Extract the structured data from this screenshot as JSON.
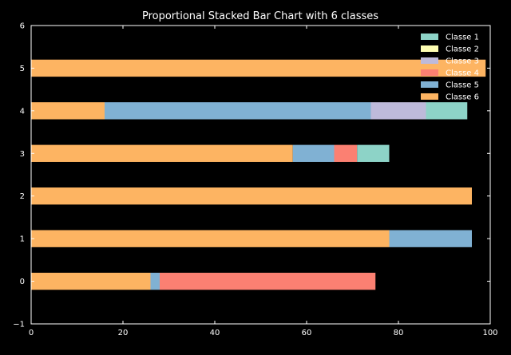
{
  "chart_data": {
    "type": "bar",
    "orientation": "horizontal",
    "stacked": true,
    "title": "Proportional Stacked Bar Chart with 6 classes",
    "xlabel": "",
    "ylabel": "",
    "xlim": [
      0,
      100
    ],
    "ylim": [
      -1,
      6
    ],
    "x_ticks": [
      0,
      20,
      40,
      60,
      80,
      100
    ],
    "y_ticks": [
      -1,
      0,
      1,
      2,
      3,
      4,
      5,
      6
    ],
    "categories": [
      0,
      1,
      2,
      3,
      4,
      5
    ],
    "grid": false,
    "legend_position": "top-right",
    "background": "#000000",
    "series": [
      {
        "name": "Classe 6",
        "color": "#fdb462",
        "values": [
          26,
          78,
          96,
          57,
          16,
          99
        ]
      },
      {
        "name": "Classe 5",
        "color": "#80b1d3",
        "values": [
          2,
          18,
          0,
          9,
          58,
          0
        ]
      },
      {
        "name": "Classe 4",
        "color": "#fb8072",
        "values": [
          47,
          0,
          0,
          5,
          0,
          0
        ]
      },
      {
        "name": "Classe 3",
        "color": "#bebada",
        "values": [
          0,
          0,
          0,
          0,
          12,
          0
        ]
      },
      {
        "name": "Classe 2",
        "color": "#ffffb3",
        "values": [
          0,
          0,
          0,
          0,
          0,
          0
        ]
      },
      {
        "name": "Classe 1",
        "color": "#8dd3c7",
        "values": [
          0,
          0,
          0,
          7,
          9,
          0
        ]
      }
    ],
    "legend_order": [
      "Classe 1",
      "Classe 2",
      "Classe 3",
      "Classe 4",
      "Classe 5",
      "Classe 6"
    ]
  }
}
